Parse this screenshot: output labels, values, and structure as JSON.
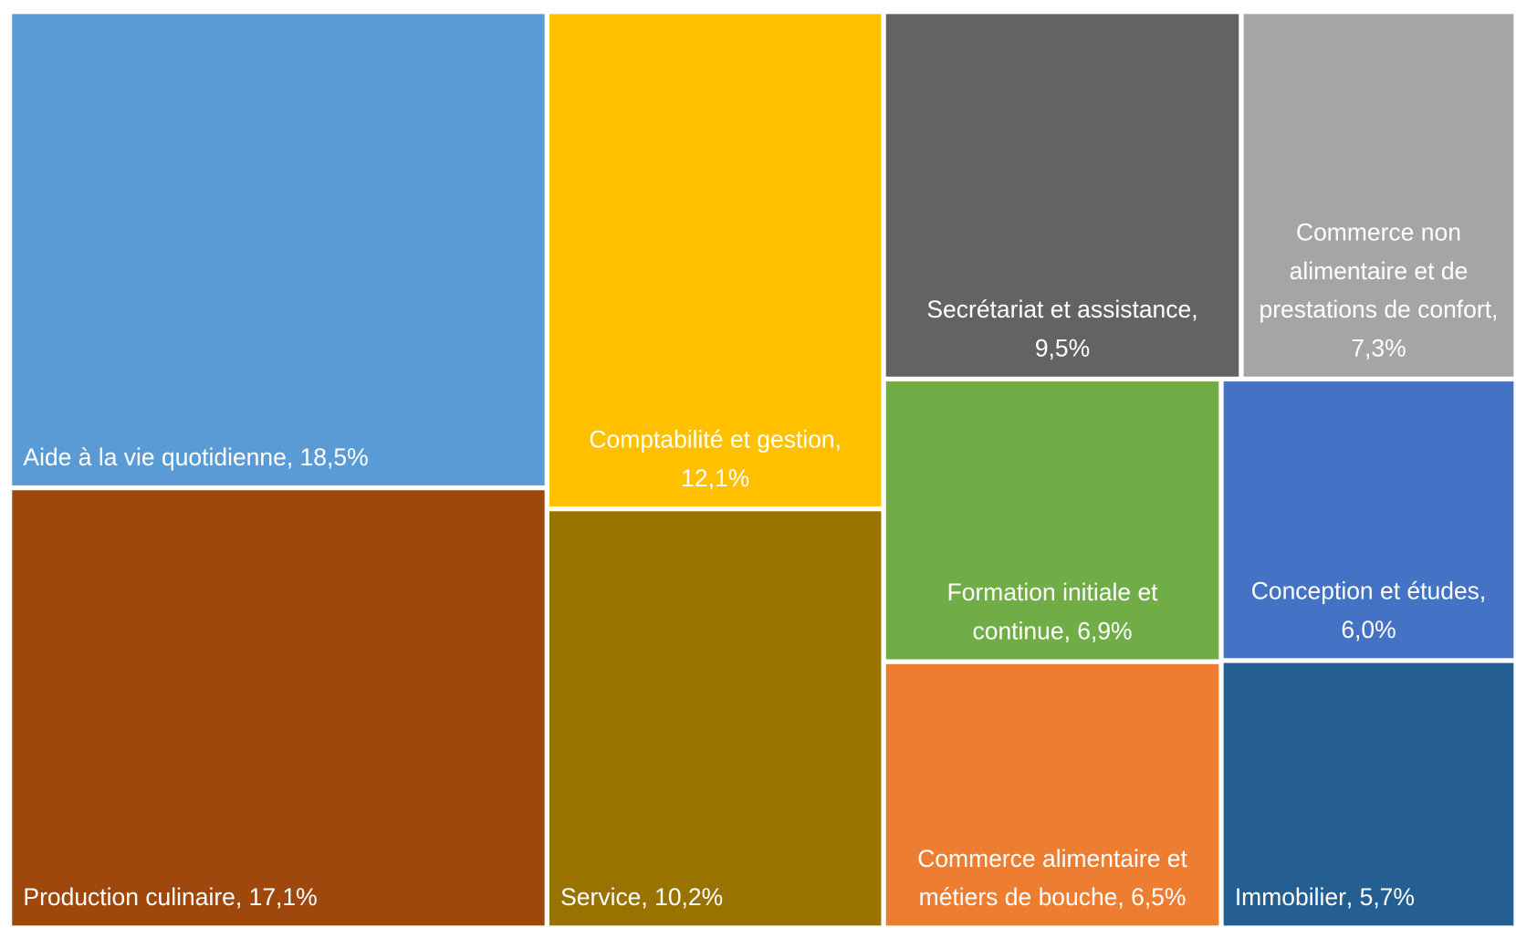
{
  "chart_data": {
    "type": "treemap",
    "categories": [
      "Aide à la vie quotidienne",
      "Production culinaire",
      "Comptabilité et gestion",
      "Service",
      "Secrétariat et assistance",
      "Commerce non alimentaire et de prestations de confort",
      "Formation initiale et continue",
      "Commerce alimentaire et métiers de bouche",
      "Conception et études",
      "Immobilier"
    ],
    "values": [
      18.5,
      17.1,
      12.1,
      10.2,
      9.5,
      7.3,
      6.9,
      6.5,
      6.0,
      5.7
    ],
    "value_labels": [
      "18,5%",
      "17,1%",
      "12,1%",
      "10,2%",
      "9,5%",
      "7,3%",
      "6,9%",
      "6,5%",
      "6,0%",
      "5,7%"
    ],
    "colors": [
      "#5b9bd5",
      "#9e480e",
      "#ffc000",
      "#997300",
      "#636363",
      "#a5a5a5",
      "#70ad47",
      "#ed7d31",
      "#4472c4",
      "#255e91"
    ]
  }
}
